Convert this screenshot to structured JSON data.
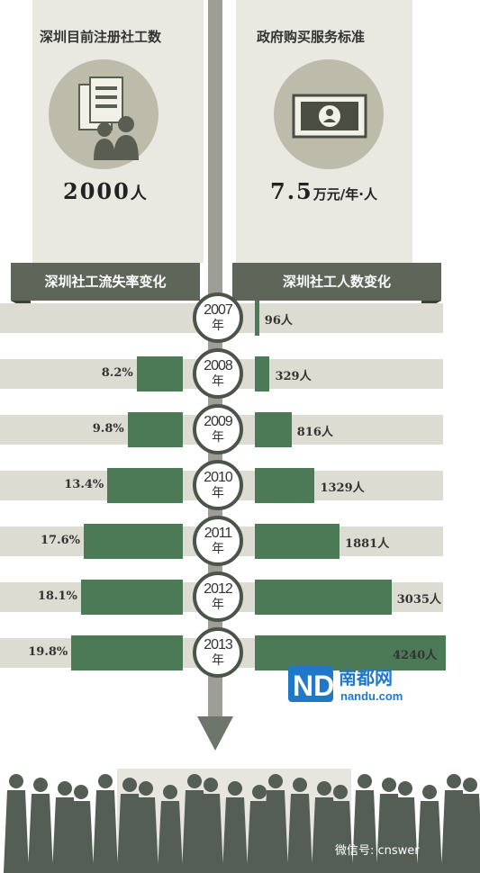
{
  "header": {
    "left_title": "深圳目前注册社工数",
    "left_value": "2000",
    "left_unit": "人",
    "right_title": "政府购买服务标准",
    "right_value": "7.5",
    "right_unit": "万元/年·人"
  },
  "ribbons": {
    "left": "深圳社工流失率变化",
    "right": "深圳社工人数变化"
  },
  "year_suffix": "年",
  "chart_data": [
    {
      "type": "bar",
      "title": "深圳社工流失率变化",
      "categories": [
        "2007",
        "2008",
        "2009",
        "2010",
        "2011",
        "2012",
        "2013"
      ],
      "values": [
        null,
        8.2,
        9.8,
        13.4,
        17.6,
        18.1,
        19.8
      ],
      "labels": [
        "",
        "8.2%",
        "9.8%",
        "13.4%",
        "17.6%",
        "18.1%",
        "19.8%"
      ],
      "unit": "%",
      "orientation": "horizontal-leftward"
    },
    {
      "type": "bar",
      "title": "深圳社工人数变化",
      "categories": [
        "2007",
        "2008",
        "2009",
        "2010",
        "2011",
        "2012",
        "2013"
      ],
      "values": [
        96,
        329,
        816,
        1329,
        1881,
        3035,
        4240
      ],
      "labels": [
        "96人",
        "329人",
        "816人",
        "1329人",
        "1881人",
        "3035人",
        "4240人"
      ],
      "unit": "人",
      "orientation": "horizontal-rightward"
    }
  ],
  "watermark": {
    "logo_letters": "ND",
    "site_name": "南都网",
    "site_domain": "nandu.com"
  },
  "footer": {
    "wechat_label": "微信号: cnswer"
  },
  "colors": {
    "bar": "#4d7a56",
    "ribbon": "#5d6659",
    "band": "#dcdcd3",
    "panel": "#e9e9e1"
  }
}
